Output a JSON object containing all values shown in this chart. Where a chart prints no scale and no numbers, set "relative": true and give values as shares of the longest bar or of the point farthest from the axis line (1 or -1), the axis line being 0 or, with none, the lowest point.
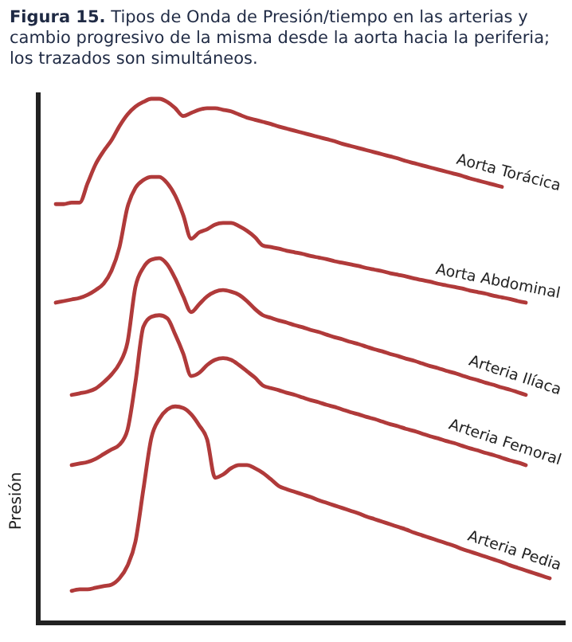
{
  "chart_data": {
    "type": "line",
    "relative": true,
    "title": "Figura 15. Tipos de Onda de Presión/tiempo en las arterias y cambio progresivo de la misma desde la aorta hacia la periferia; los trazados son simultáneos.",
    "ylabel": "Presión",
    "grid": false,
    "line_style": "solid",
    "categories": [
      null,
      null,
      null,
      null,
      null,
      null,
      null,
      null,
      null,
      null,
      null,
      null,
      null,
      null,
      null,
      null,
      null,
      null,
      null,
      null,
      null,
      null,
      null,
      null,
      null,
      null,
      null,
      null,
      null,
      null,
      null,
      null,
      null,
      null,
      null,
      null,
      null,
      null,
      null,
      null,
      null,
      null,
      null,
      null,
      null,
      null,
      null,
      null,
      null,
      null,
      null,
      null,
      null,
      null,
      null,
      null,
      null,
      null,
      null,
      null,
      null,
      null,
      null,
      null
    ],
    "series": [
      {
        "name": "Aorta Torácica",
        "color": "#b03a3a",
        "values": [
          0.799,
          0.799,
          0.802,
          0.802,
          0.839,
          0.875,
          0.9,
          0.921,
          0.948,
          0.97,
          0.985,
          0.994,
          1.0,
          1.0,
          0.994,
          0.982,
          0.967,
          0.973,
          0.979,
          0.982,
          0.982,
          0.979,
          0.976,
          0.97,
          0.964,
          0.96,
          0.956,
          0.952,
          0.947,
          0.943,
          0.939,
          0.935,
          0.931,
          0.927,
          0.923,
          0.919,
          0.914,
          0.91,
          0.906,
          0.902,
          0.898,
          0.894,
          0.89,
          0.886,
          0.881,
          0.877,
          0.873,
          0.869,
          0.865,
          0.861,
          0.857,
          0.853,
          0.848,
          0.844,
          0.84,
          0.836,
          0.832,
          null,
          null,
          null,
          null,
          null,
          null,
          null
        ]
      },
      {
        "name": "Aorta Abdominal",
        "color": "#b03a3a",
        "values": [
          0.611,
          0.614,
          0.617,
          0.62,
          0.626,
          0.635,
          0.647,
          0.672,
          0.717,
          0.793,
          0.83,
          0.845,
          0.851,
          0.851,
          0.839,
          0.815,
          0.778,
          0.733,
          0.745,
          0.751,
          0.76,
          0.763,
          0.763,
          0.757,
          0.748,
          0.736,
          0.72,
          0.717,
          0.714,
          0.71,
          0.707,
          0.704,
          0.7,
          0.697,
          0.694,
          0.69,
          0.687,
          0.684,
          0.681,
          0.677,
          0.674,
          0.671,
          0.667,
          0.664,
          0.661,
          0.657,
          0.654,
          0.651,
          0.647,
          0.644,
          0.641,
          0.638,
          0.634,
          0.631,
          0.628,
          0.624,
          0.621,
          0.618,
          0.614,
          0.611,
          null,
          null,
          null,
          null
        ]
      },
      {
        "name": "Arteria Ilíaca",
        "color": "#b03a3a",
        "values": [
          null,
          null,
          0.435,
          0.438,
          0.441,
          0.447,
          0.459,
          0.474,
          0.495,
          0.535,
          0.641,
          0.678,
          0.693,
          0.696,
          0.684,
          0.657,
          0.623,
          0.593,
          0.608,
          0.623,
          0.632,
          0.635,
          0.632,
          0.626,
          0.614,
          0.599,
          0.587,
          0.582,
          0.577,
          0.573,
          0.568,
          0.564,
          0.559,
          0.555,
          0.55,
          0.545,
          0.541,
          0.536,
          0.532,
          0.527,
          0.522,
          0.518,
          0.513,
          0.509,
          0.504,
          0.5,
          0.495,
          0.49,
          0.486,
          0.481,
          0.477,
          0.472,
          0.467,
          0.463,
          0.458,
          0.454,
          0.449,
          0.445,
          0.44,
          0.435,
          null,
          null,
          null,
          null
        ]
      },
      {
        "name": "Arteria Femoral",
        "color": "#b03a3a",
        "values": [
          null,
          null,
          0.301,
          0.304,
          0.307,
          0.313,
          0.322,
          0.331,
          0.34,
          0.368,
          0.459,
          0.565,
          0.584,
          0.587,
          0.581,
          0.55,
          0.514,
          0.471,
          0.477,
          0.492,
          0.502,
          0.505,
          0.502,
          0.492,
          0.48,
          0.468,
          0.453,
          0.448,
          0.444,
          0.439,
          0.435,
          0.43,
          0.425,
          0.421,
          0.416,
          0.412,
          0.407,
          0.402,
          0.398,
          0.393,
          0.389,
          0.384,
          0.379,
          0.375,
          0.37,
          0.366,
          0.361,
          0.356,
          0.352,
          0.347,
          0.343,
          0.338,
          0.333,
          0.329,
          0.324,
          0.32,
          0.315,
          0.31,
          0.306,
          0.301,
          null,
          null,
          null,
          null
        ]
      },
      {
        "name": "Arteria Pedia",
        "color": "#b03a3a",
        "values": [
          null,
          null,
          0.061,
          0.064,
          0.064,
          0.067,
          0.07,
          0.073,
          0.085,
          0.109,
          0.155,
          0.255,
          0.353,
          0.389,
          0.407,
          0.413,
          0.41,
          0.398,
          0.377,
          0.35,
          0.277,
          0.283,
          0.295,
          0.301,
          0.301,
          0.295,
          0.286,
          0.274,
          0.261,
          0.255,
          0.25,
          0.245,
          0.24,
          0.234,
          0.229,
          0.224,
          0.219,
          0.214,
          0.209,
          0.203,
          0.198,
          0.193,
          0.188,
          0.183,
          0.178,
          0.172,
          0.167,
          0.162,
          0.157,
          0.152,
          0.147,
          0.141,
          0.136,
          0.131,
          0.126,
          0.121,
          0.116,
          0.11,
          0.105,
          0.1,
          0.095,
          0.09,
          0.085,
          null
        ]
      }
    ]
  }
}
